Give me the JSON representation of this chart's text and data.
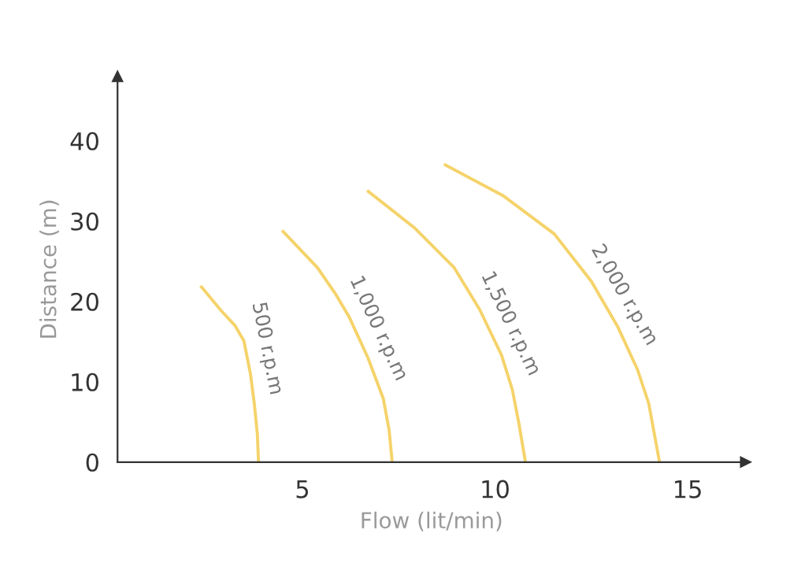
{
  "chart_data": {
    "type": "line",
    "xlabel": "Flow (lit/min)",
    "ylabel": "Distance (m)",
    "xlim": [
      0.2,
      16.5
    ],
    "ylim": [
      0,
      48
    ],
    "xticks": [
      5,
      10,
      15
    ],
    "yticks": [
      0,
      10,
      20,
      30,
      40
    ],
    "grid": false,
    "marker": "none",
    "line_style": "solid",
    "series": [
      {
        "name": "500 r.p.m",
        "color": "#f5d36a",
        "x": [
          2.38,
          2.9,
          3.25,
          3.48,
          3.65,
          3.75,
          3.83,
          3.86
        ],
        "values": [
          21.8,
          18.8,
          17,
          15.1,
          11,
          7.3,
          3.5,
          0
        ]
      },
      {
        "name": "1,000 r.p.m",
        "color": "#f5d36a",
        "x": [
          4.5,
          5.39,
          5.85,
          6.21,
          6.7,
          7.1,
          7.25,
          7.33
        ],
        "values": [
          28.7,
          24.2,
          21,
          18.1,
          13,
          7.9,
          4,
          0
        ]
      },
      {
        "name": "1,500 r.p.m",
        "color": "#f5d36a",
        "x": [
          6.71,
          7.9,
          8.94,
          9.6,
          10.17,
          10.45,
          10.62,
          10.79
        ],
        "values": [
          33.7,
          29.2,
          24.2,
          19,
          13.3,
          9,
          4.8,
          0
        ]
      },
      {
        "name": "2,000 r.p.m",
        "color": "#f5d36a",
        "x": [
          8.71,
          10.2,
          11.54,
          12.5,
          13.18,
          13.7,
          13.99,
          14.27
        ],
        "values": [
          37,
          33.2,
          28.4,
          22.5,
          16.9,
          11.5,
          7.3,
          0
        ]
      }
    ]
  }
}
